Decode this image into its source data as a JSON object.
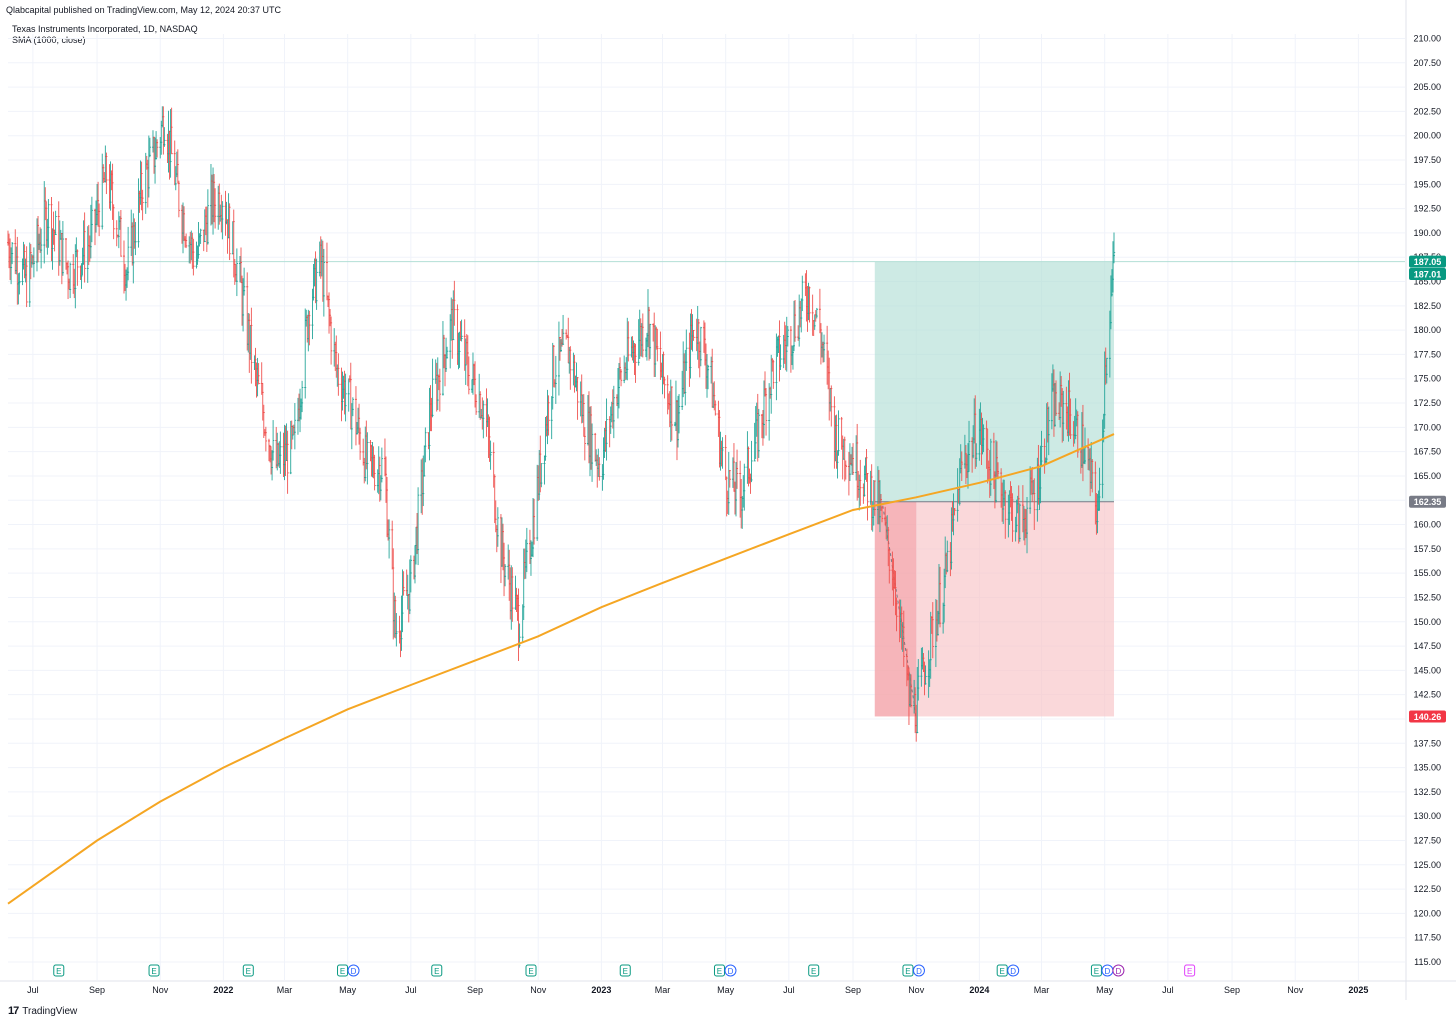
{
  "header": {
    "published": "Qlabcapital published on TradingView.com, May 12, 2024 20:37 UTC",
    "symbol_line": "Texas Instruments Incorporated, 1D, NASDAQ",
    "indicator_line": "SMA (1000, close)"
  },
  "footer": {
    "logo": "17",
    "brand": "TradingView"
  },
  "colors": {
    "up": "#26a69a",
    "down": "#ef5350",
    "sma": "#f5a623",
    "profit_zone": "#b2dfd6",
    "loss_zone": "#f7c3c6",
    "price_label_green": "#089981",
    "price_label_red": "#f23645",
    "price_label_gray": "#787b86",
    "grid": "#f0f3fa",
    "earnings_green": "#089981",
    "earnings_blue": "#2962ff",
    "earnings_purple": "#9c27b0",
    "earnings_magenta": "#e040fb"
  },
  "chart_data": {
    "type": "candlestick",
    "title": "Texas Instruments Incorporated, 1D, NASDAQ",
    "x_range": [
      "2021-06-07",
      "2025-02-15"
    ],
    "y_range": [
      114,
      211
    ],
    "y_ticks": [
      "210.00",
      "207.50",
      "205.00",
      "202.50",
      "200.00",
      "197.50",
      "195.00",
      "192.50",
      "190.00",
      "187.50",
      "185.00",
      "182.50",
      "180.00",
      "177.50",
      "175.00",
      "172.50",
      "170.00",
      "167.50",
      "165.00",
      "162.50",
      "160.00",
      "157.50",
      "155.00",
      "152.50",
      "150.00",
      "147.50",
      "145.00",
      "142.50",
      "140.00",
      "137.50",
      "135.00",
      "132.50",
      "130.00",
      "127.50",
      "125.00",
      "122.50",
      "120.00",
      "117.50",
      "115.00"
    ],
    "x_ticks": [
      {
        "label": "Jul",
        "date": "2021-07-01"
      },
      {
        "label": "Sep",
        "date": "2021-09-01"
      },
      {
        "label": "Nov",
        "date": "2021-11-01"
      },
      {
        "label": "2022",
        "date": "2022-01-01"
      },
      {
        "label": "Mar",
        "date": "2022-03-01"
      },
      {
        "label": "May",
        "date": "2022-05-01"
      },
      {
        "label": "Jul",
        "date": "2022-07-01"
      },
      {
        "label": "Sep",
        "date": "2022-09-01"
      },
      {
        "label": "Nov",
        "date": "2022-11-01"
      },
      {
        "label": "2023",
        "date": "2023-01-01"
      },
      {
        "label": "Mar",
        "date": "2023-03-01"
      },
      {
        "label": "May",
        "date": "2023-05-01"
      },
      {
        "label": "Jul",
        "date": "2023-07-01"
      },
      {
        "label": "Sep",
        "date": "2023-09-01"
      },
      {
        "label": "Nov",
        "date": "2023-11-01"
      },
      {
        "label": "2024",
        "date": "2024-01-01"
      },
      {
        "label": "Mar",
        "date": "2024-03-01"
      },
      {
        "label": "May",
        "date": "2024-05-01"
      },
      {
        "label": "Jul",
        "date": "2024-07-01"
      },
      {
        "label": "Sep",
        "date": "2024-09-01"
      },
      {
        "label": "Nov",
        "date": "2024-11-01"
      },
      {
        "label": "2025",
        "date": "2025-01-01"
      }
    ],
    "price_path": [
      [
        "2021-06-07",
        189
      ],
      [
        "2021-06-25",
        185
      ],
      [
        "2021-07-15",
        192
      ],
      [
        "2021-08-05",
        186
      ],
      [
        "2021-08-25",
        189
      ],
      [
        "2021-09-10",
        196
      ],
      [
        "2021-09-30",
        186
      ],
      [
        "2021-10-15",
        195
      ],
      [
        "2021-10-29",
        199
      ],
      [
        "2021-11-05",
        202
      ],
      [
        "2021-11-20",
        193
      ],
      [
        "2021-12-05",
        187
      ],
      [
        "2021-12-20",
        193
      ],
      [
        "2021-12-31",
        194
      ],
      [
        "2022-01-15",
        186
      ],
      [
        "2022-02-01",
        175
      ],
      [
        "2022-02-20",
        166
      ],
      [
        "2022-03-10",
        168
      ],
      [
        "2022-03-25",
        183
      ],
      [
        "2022-04-05",
        187
      ],
      [
        "2022-04-20",
        176
      ],
      [
        "2022-05-05",
        172
      ],
      [
        "2022-05-20",
        166
      ],
      [
        "2022-06-05",
        166
      ],
      [
        "2022-06-16",
        149
      ],
      [
        "2022-07-01",
        154
      ],
      [
        "2022-07-20",
        172
      ],
      [
        "2022-08-10",
        181
      ],
      [
        "2022-08-25",
        176
      ],
      [
        "2022-09-10",
        172
      ],
      [
        "2022-09-25",
        158
      ],
      [
        "2022-10-13",
        150
      ],
      [
        "2022-10-28",
        161
      ],
      [
        "2022-11-15",
        176
      ],
      [
        "2022-11-30",
        178
      ],
      [
        "2022-12-15",
        171
      ],
      [
        "2022-12-31",
        166
      ],
      [
        "2023-01-15",
        174
      ],
      [
        "2023-01-31",
        178
      ],
      [
        "2023-02-15",
        181
      ],
      [
        "2023-03-01",
        175
      ],
      [
        "2023-03-15",
        171
      ],
      [
        "2023-04-01",
        181
      ],
      [
        "2023-04-15",
        176
      ],
      [
        "2023-04-30",
        165
      ],
      [
        "2023-05-15",
        163
      ],
      [
        "2023-05-31",
        169
      ],
      [
        "2023-06-15",
        176
      ],
      [
        "2023-06-30",
        179
      ],
      [
        "2023-07-20",
        184
      ],
      [
        "2023-07-31",
        180
      ],
      [
        "2023-08-15",
        169
      ],
      [
        "2023-09-01",
        167
      ],
      [
        "2023-09-15",
        164
      ],
      [
        "2023-09-25",
        162
      ],
      [
        "2023-10-10",
        155
      ],
      [
        "2023-10-25",
        142
      ],
      [
        "2023-11-01",
        141
      ],
      [
        "2023-11-10",
        146
      ],
      [
        "2023-11-30",
        155
      ],
      [
        "2023-12-15",
        166
      ],
      [
        "2023-12-31",
        170
      ],
      [
        "2024-01-15",
        165
      ],
      [
        "2024-01-25",
        163
      ],
      [
        "2024-02-10",
        160
      ],
      [
        "2024-02-25",
        164
      ],
      [
        "2024-03-10",
        172
      ],
      [
        "2024-03-25",
        172
      ],
      [
        "2024-04-10",
        168
      ],
      [
        "2024-04-25",
        161
      ],
      [
        "2024-05-01",
        176
      ],
      [
        "2024-05-10",
        187.05
      ]
    ],
    "sma": {
      "name": "SMA (1000, close)",
      "points": [
        [
          "2021-06-07",
          121
        ],
        [
          "2021-09-01",
          127.5
        ],
        [
          "2021-11-01",
          131.5
        ],
        [
          "2022-01-01",
          135
        ],
        [
          "2022-03-01",
          138
        ],
        [
          "2022-05-01",
          141
        ],
        [
          "2022-07-01",
          143.5
        ],
        [
          "2022-09-01",
          146
        ],
        [
          "2022-11-01",
          148.5
        ],
        [
          "2023-01-01",
          151.5
        ],
        [
          "2023-03-01",
          154
        ],
        [
          "2023-05-01",
          156.5
        ],
        [
          "2023-07-01",
          159
        ],
        [
          "2023-09-01",
          161.5
        ],
        [
          "2023-11-01",
          162.8
        ],
        [
          "2024-01-01",
          164.3
        ],
        [
          "2024-03-01",
          166
        ],
        [
          "2024-05-10",
          169.3
        ]
      ]
    },
    "position": {
      "start": "2023-09-22",
      "end": "2024-05-10",
      "target": 187.05,
      "entry": 162.35,
      "stop": 140.26
    },
    "price_labels": [
      {
        "value": 187.05,
        "text": "187.05",
        "kind": "green"
      },
      {
        "value": 187.01,
        "text": "187.01",
        "kind": "green"
      },
      {
        "value": 162.35,
        "text": "162.35",
        "kind": "gray"
      },
      {
        "value": 140.26,
        "text": "140.26",
        "kind": "red"
      }
    ],
    "events": [
      {
        "date": "2021-07-27",
        "badges": [
          "E"
        ]
      },
      {
        "date": "2021-10-27",
        "badges": [
          "E"
        ]
      },
      {
        "date": "2022-01-26",
        "badges": [
          "E"
        ]
      },
      {
        "date": "2022-04-27",
        "badges": [
          "E",
          "D"
        ]
      },
      {
        "date": "2022-07-27",
        "badges": [
          "E"
        ]
      },
      {
        "date": "2022-10-26",
        "badges": [
          "E"
        ]
      },
      {
        "date": "2023-01-25",
        "badges": [
          "E"
        ]
      },
      {
        "date": "2023-04-26",
        "badges": [
          "E",
          "D"
        ]
      },
      {
        "date": "2023-07-26",
        "badges": [
          "E"
        ]
      },
      {
        "date": "2023-10-25",
        "badges": [
          "E",
          "D"
        ]
      },
      {
        "date": "2024-01-24",
        "badges": [
          "E",
          "D"
        ]
      },
      {
        "date": "2024-04-24",
        "badges": [
          "E",
          "D",
          "D"
        ]
      },
      {
        "date": "2024-07-23",
        "badges": [
          "E"
        ]
      }
    ]
  }
}
